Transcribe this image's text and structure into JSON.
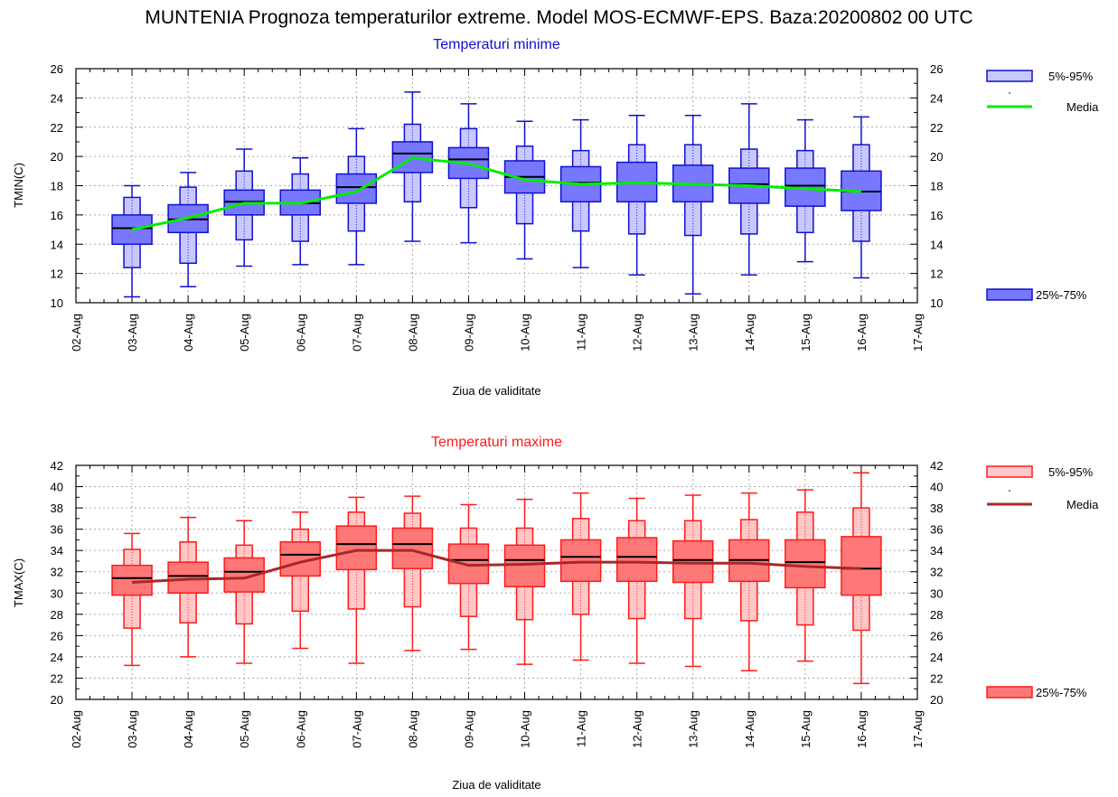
{
  "title": "MUNTENIA  Prognoza temperaturilor extreme.  Model MOS-ECMWF-EPS. Baza:20200802 00 UTC",
  "chart_data": [
    {
      "type": "boxplot",
      "title": "Temperaturi minime",
      "ylabel": "TMIN(C)",
      "xlabel": "Ziua de validitate",
      "categories": [
        "02-Aug",
        "03-Aug",
        "04-Aug",
        "05-Aug",
        "06-Aug",
        "07-Aug",
        "08-Aug",
        "09-Aug",
        "10-Aug",
        "11-Aug",
        "12-Aug",
        "13-Aug",
        "14-Aug",
        "15-Aug",
        "16-Aug",
        "17-Aug"
      ],
      "ylim": [
        10,
        26
      ],
      "yticks": [
        10,
        12,
        14,
        16,
        18,
        20,
        22,
        24,
        26
      ],
      "grid": true,
      "colors": {
        "line": "#1010d0",
        "box_fill": "#7878ff",
        "whisker_fill": "#c8c8ff",
        "mean": "#00ee00",
        "median": "#000000"
      },
      "legend": {
        "position": "right",
        "outer_label": "5%-95%",
        "mean_label": "Media",
        "inner_label": "25%-75%"
      },
      "boxes": [
        {
          "x": "03-Aug",
          "min": 10.4,
          "p5": 12.4,
          "p25": 14.0,
          "median": 15.1,
          "p75": 16.0,
          "p95": 17.2,
          "max": 18.0,
          "mean": 15.0
        },
        {
          "x": "04-Aug",
          "min": 11.1,
          "p5": 12.7,
          "p25": 14.8,
          "median": 15.7,
          "p75": 16.7,
          "p95": 17.9,
          "max": 18.9,
          "mean": 15.8
        },
        {
          "x": "05-Aug",
          "min": 12.5,
          "p5": 14.3,
          "p25": 16.0,
          "median": 16.9,
          "p75": 17.7,
          "p95": 19.0,
          "max": 20.5,
          "mean": 16.8
        },
        {
          "x": "06-Aug",
          "min": 12.6,
          "p5": 14.2,
          "p25": 16.0,
          "median": 16.8,
          "p75": 17.7,
          "p95": 18.8,
          "max": 19.9,
          "mean": 16.8
        },
        {
          "x": "07-Aug",
          "min": 12.6,
          "p5": 14.9,
          "p25": 16.8,
          "median": 17.9,
          "p75": 18.8,
          "p95": 20.0,
          "max": 21.9,
          "mean": 17.6
        },
        {
          "x": "08-Aug",
          "min": 14.2,
          "p5": 16.9,
          "p25": 18.9,
          "median": 20.2,
          "p75": 21.0,
          "p95": 22.2,
          "max": 24.4,
          "mean": 19.9
        },
        {
          "x": "09-Aug",
          "min": 14.1,
          "p5": 16.5,
          "p25": 18.5,
          "median": 19.8,
          "p75": 20.6,
          "p95": 21.9,
          "max": 23.6,
          "mean": 19.5
        },
        {
          "x": "10-Aug",
          "min": 13.0,
          "p5": 15.4,
          "p25": 17.5,
          "median": 18.6,
          "p75": 19.7,
          "p95": 20.7,
          "max": 22.4,
          "mean": 18.4
        },
        {
          "x": "11-Aug",
          "min": 12.4,
          "p5": 14.9,
          "p25": 16.9,
          "median": 18.2,
          "p75": 19.3,
          "p95": 20.4,
          "max": 22.5,
          "mean": 18.1
        },
        {
          "x": "12-Aug",
          "min": 11.9,
          "p5": 14.7,
          "p25": 16.9,
          "median": 18.2,
          "p75": 19.6,
          "p95": 20.8,
          "max": 22.8,
          "mean": 18.2
        },
        {
          "x": "13-Aug",
          "min": 10.6,
          "p5": 14.6,
          "p25": 16.9,
          "median": 18.1,
          "p75": 19.4,
          "p95": 20.8,
          "max": 22.8,
          "mean": 18.1
        },
        {
          "x": "14-Aug",
          "min": 11.9,
          "p5": 14.7,
          "p25": 16.8,
          "median": 18.1,
          "p75": 19.2,
          "p95": 20.5,
          "max": 23.6,
          "mean": 18.0
        },
        {
          "x": "15-Aug",
          "min": 12.8,
          "p5": 14.8,
          "p25": 16.6,
          "median": 18.0,
          "p75": 19.2,
          "p95": 20.4,
          "max": 22.5,
          "mean": 17.8
        },
        {
          "x": "16-Aug",
          "min": 11.7,
          "p5": 14.2,
          "p25": 16.3,
          "median": 17.6,
          "p75": 19.0,
          "p95": 20.8,
          "max": 22.7,
          "mean": 17.6
        }
      ]
    },
    {
      "type": "boxplot",
      "title": "Temperaturi maxime",
      "ylabel": "TMAX(C)",
      "xlabel": "Ziua de validitate",
      "categories": [
        "02-Aug",
        "03-Aug",
        "04-Aug",
        "05-Aug",
        "06-Aug",
        "07-Aug",
        "08-Aug",
        "09-Aug",
        "10-Aug",
        "11-Aug",
        "12-Aug",
        "13-Aug",
        "14-Aug",
        "15-Aug",
        "16-Aug",
        "17-Aug"
      ],
      "ylim": [
        20,
        42
      ],
      "yticks": [
        20,
        22,
        24,
        26,
        28,
        30,
        32,
        34,
        36,
        38,
        40,
        42
      ],
      "grid": true,
      "colors": {
        "line": "#ff1a1a",
        "box_fill": "#ff7878",
        "whisker_fill": "#ffc8c8",
        "mean": "#a82828",
        "median": "#000000"
      },
      "legend": {
        "position": "right",
        "outer_label": "5%-95%",
        "mean_label": "Media",
        "inner_label": "25%-75%"
      },
      "boxes": [
        {
          "x": "03-Aug",
          "min": 23.2,
          "p5": 26.7,
          "p25": 29.8,
          "median": 31.4,
          "p75": 32.6,
          "p95": 34.1,
          "max": 35.6,
          "mean": 31.0
        },
        {
          "x": "04-Aug",
          "min": 24.0,
          "p5": 27.2,
          "p25": 30.0,
          "median": 31.6,
          "p75": 32.9,
          "p95": 34.8,
          "max": 37.1,
          "mean": 31.3
        },
        {
          "x": "05-Aug",
          "min": 23.4,
          "p5": 27.1,
          "p25": 30.1,
          "median": 32.0,
          "p75": 33.3,
          "p95": 34.5,
          "max": 36.8,
          "mean": 31.4
        },
        {
          "x": "06-Aug",
          "min": 24.8,
          "p5": 28.3,
          "p25": 31.6,
          "median": 33.6,
          "p75": 34.8,
          "p95": 36.0,
          "max": 37.6,
          "mean": 32.9
        },
        {
          "x": "07-Aug",
          "min": 23.4,
          "p5": 28.5,
          "p25": 32.2,
          "median": 34.6,
          "p75": 36.3,
          "p95": 37.6,
          "max": 39.0,
          "mean": 34.0
        },
        {
          "x": "08-Aug",
          "min": 24.6,
          "p5": 28.7,
          "p25": 32.3,
          "median": 34.6,
          "p75": 36.1,
          "p95": 37.5,
          "max": 39.1,
          "mean": 34.0
        },
        {
          "x": "09-Aug",
          "min": 24.7,
          "p5": 27.8,
          "p25": 30.9,
          "median": 33.1,
          "p75": 34.6,
          "p95": 36.1,
          "max": 38.3,
          "mean": 32.6
        },
        {
          "x": "10-Aug",
          "min": 23.3,
          "p5": 27.5,
          "p25": 30.6,
          "median": 33.1,
          "p75": 34.5,
          "p95": 36.1,
          "max": 38.8,
          "mean": 32.7
        },
        {
          "x": "11-Aug",
          "min": 23.7,
          "p5": 28.0,
          "p25": 31.1,
          "median": 33.4,
          "p75": 35.0,
          "p95": 37.0,
          "max": 39.4,
          "mean": 32.9
        },
        {
          "x": "12-Aug",
          "min": 23.4,
          "p5": 27.6,
          "p25": 31.1,
          "median": 33.4,
          "p75": 35.2,
          "p95": 36.8,
          "max": 38.9,
          "mean": 32.9
        },
        {
          "x": "13-Aug",
          "min": 23.1,
          "p5": 27.6,
          "p25": 31.0,
          "median": 33.1,
          "p75": 34.9,
          "p95": 36.8,
          "max": 39.2,
          "mean": 32.8
        },
        {
          "x": "14-Aug",
          "min": 22.7,
          "p5": 27.4,
          "p25": 31.1,
          "median": 33.1,
          "p75": 35.0,
          "p95": 36.9,
          "max": 39.4,
          "mean": 32.8
        },
        {
          "x": "15-Aug",
          "min": 23.6,
          "p5": 27.0,
          "p25": 30.5,
          "median": 32.9,
          "p75": 35.0,
          "p95": 37.6,
          "max": 39.7,
          "mean": 32.5
        },
        {
          "x": "16-Aug",
          "min": 21.5,
          "p5": 26.5,
          "p25": 29.8,
          "median": 32.3,
          "p75": 35.3,
          "p95": 38.0,
          "max": 41.3,
          "mean": 32.3
        }
      ]
    }
  ]
}
